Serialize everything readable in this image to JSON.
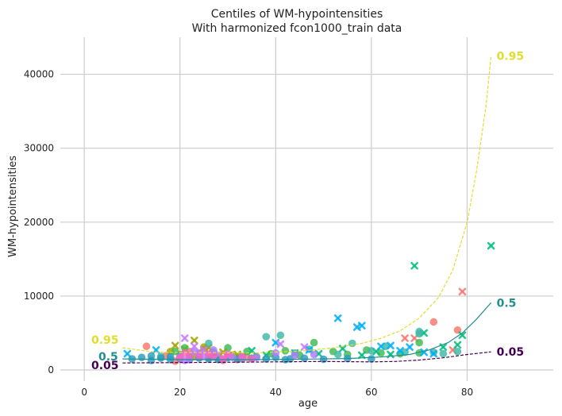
{
  "chart_data": {
    "type": "scatter",
    "title": "Centiles of WM-hypointensities",
    "subtitle": "With harmonized fcon1000_train data",
    "xlabel": "age",
    "ylabel": "WM-hypointensities",
    "xlim": [
      -5,
      98
    ],
    "ylim": [
      -1500,
      45000
    ],
    "xticks": [
      0,
      20,
      40,
      60,
      80
    ],
    "yticks": [
      0,
      10000,
      20000,
      30000,
      40000
    ],
    "grid": true,
    "centile_lines": [
      {
        "label": "0.95",
        "color": "#e1dd2e",
        "style": "dashed",
        "x": [
          8,
          15,
          25,
          35,
          45,
          52,
          58,
          62,
          66,
          70,
          74,
          77,
          80,
          82,
          84,
          85
        ],
        "y": [
          3000,
          2400,
          2350,
          2300,
          2550,
          3000,
          3600,
          4300,
          5300,
          7000,
          9800,
          13500,
          20000,
          27000,
          36000,
          42500
        ]
      },
      {
        "label": "0.5",
        "color": "#21908d",
        "style": "solid",
        "x": [
          8,
          15,
          25,
          35,
          45,
          55,
          62,
          68,
          72,
          76,
          79,
          82,
          85
        ],
        "y": [
          1500,
          1450,
          1400,
          1400,
          1450,
          1550,
          1750,
          2100,
          2700,
          3700,
          5000,
          6900,
          9100
        ]
      },
      {
        "label": "0.05",
        "color": "#440154",
        "style": "dashed",
        "x": [
          8,
          20,
          30,
          40,
          50,
          60,
          65,
          70,
          75,
          80,
          85
        ],
        "y": [
          950,
          1000,
          1050,
          1100,
          1150,
          1100,
          1150,
          1350,
          1650,
          2100,
          2450
        ]
      }
    ],
    "scatter_series": [
      {
        "color": "#f8766d",
        "marker": "circle",
        "points": [
          [
            13,
            3200
          ],
          [
            17,
            1900
          ],
          [
            20,
            1500
          ],
          [
            22,
            2500
          ],
          [
            24,
            2200
          ],
          [
            26,
            1600
          ],
          [
            28,
            2000
          ],
          [
            30,
            1800
          ],
          [
            32,
            1400
          ],
          [
            34,
            1700
          ],
          [
            73,
            6500
          ],
          [
            78,
            5400
          ],
          [
            19,
            1200
          ],
          [
            25,
            2800
          ],
          [
            29,
            1300
          ]
        ]
      },
      {
        "color": "#f8766d",
        "marker": "cross",
        "points": [
          [
            22,
            2100
          ],
          [
            26,
            2400
          ],
          [
            30,
            2000
          ],
          [
            67,
            4300
          ],
          [
            69,
            4300
          ],
          [
            77,
            2700
          ],
          [
            79,
            10600
          ]
        ]
      },
      {
        "color": "#a3a500",
        "marker": "circle",
        "points": [
          [
            18,
            2500
          ],
          [
            20,
            2100
          ],
          [
            23,
            1800
          ],
          [
            25,
            3100
          ],
          [
            28,
            1600
          ],
          [
            31,
            2000
          ]
        ]
      },
      {
        "color": "#a3a500",
        "marker": "cross",
        "points": [
          [
            19,
            3300
          ],
          [
            21,
            2800
          ],
          [
            23,
            4000
          ],
          [
            26,
            3000
          ],
          [
            29,
            2400
          ],
          [
            32,
            2100
          ]
        ]
      },
      {
        "color": "#3fb950",
        "marker": "circle",
        "points": [
          [
            19,
            2500
          ],
          [
            21,
            3000
          ],
          [
            24,
            1700
          ],
          [
            27,
            2400
          ],
          [
            30,
            3000
          ],
          [
            34,
            2500
          ],
          [
            36,
            1800
          ],
          [
            39,
            2200
          ],
          [
            42,
            2600
          ],
          [
            45,
            2000
          ],
          [
            48,
            3700
          ],
          [
            52,
            2500
          ],
          [
            55,
            2100
          ],
          [
            59,
            2700
          ],
          [
            62,
            2300
          ],
          [
            66,
            2200
          ],
          [
            70,
            3700
          ],
          [
            70,
            2300
          ]
        ]
      },
      {
        "color": "#00bf7d",
        "marker": "cross",
        "points": [
          [
            35,
            2600
          ],
          [
            38,
            2000
          ],
          [
            44,
            2300
          ],
          [
            49,
            2200
          ],
          [
            54,
            2900
          ],
          [
            58,
            2000
          ],
          [
            61,
            2500
          ],
          [
            64,
            2100
          ],
          [
            69,
            14100
          ],
          [
            78,
            3400
          ],
          [
            79,
            4700
          ],
          [
            85,
            16800
          ],
          [
            71,
            5000
          ],
          [
            75,
            3100
          ]
        ]
      },
      {
        "color": "#3db8a3",
        "marker": "circle",
        "points": [
          [
            16,
            1800
          ],
          [
            22,
            2000
          ],
          [
            26,
            3600
          ],
          [
            33,
            1500
          ],
          [
            38,
            4500
          ],
          [
            41,
            4700
          ],
          [
            44,
            2300
          ],
          [
            47,
            2800
          ],
          [
            53,
            2100
          ],
          [
            56,
            3600
          ],
          [
            60,
            2600
          ],
          [
            63,
            3200
          ],
          [
            67,
            2400
          ],
          [
            70,
            4900
          ],
          [
            70,
            5200
          ],
          [
            73,
            2400
          ],
          [
            78,
            2500
          ],
          [
            75,
            2200
          ]
        ]
      },
      {
        "color": "#00b0f6",
        "marker": "cross",
        "points": [
          [
            9,
            2200
          ],
          [
            15,
            2700
          ],
          [
            20,
            2000
          ],
          [
            24,
            1900
          ],
          [
            27,
            2200
          ],
          [
            40,
            3700
          ],
          [
            47,
            2700
          ],
          [
            53,
            7000
          ],
          [
            57,
            5800
          ],
          [
            58,
            6000
          ],
          [
            62,
            3200
          ],
          [
            64,
            3300
          ],
          [
            66,
            2600
          ],
          [
            68,
            3100
          ],
          [
            71,
            2400
          ],
          [
            73,
            2200
          ]
        ]
      },
      {
        "color": "#2a9bc0",
        "marker": "circle",
        "points": [
          [
            10,
            1500
          ],
          [
            12,
            1700
          ],
          [
            14,
            1300
          ],
          [
            16,
            1600
          ],
          [
            18,
            1400
          ],
          [
            20,
            1550
          ],
          [
            22,
            1450
          ],
          [
            24,
            1600
          ],
          [
            26,
            1500
          ],
          [
            28,
            1400
          ],
          [
            30,
            1650
          ],
          [
            32,
            1500
          ],
          [
            35,
            1600
          ],
          [
            38,
            1500
          ],
          [
            40,
            1700
          ],
          [
            43,
            1500
          ],
          [
            46,
            1600
          ],
          [
            50,
            1450
          ],
          [
            55,
            1550
          ],
          [
            60,
            1500
          ],
          [
            14,
            1900
          ],
          [
            18,
            1800
          ],
          [
            27,
            1750
          ],
          [
            33,
            1850
          ],
          [
            42,
            1400
          ]
        ]
      },
      {
        "color": "#b07dff",
        "marker": "circle",
        "points": [
          [
            21,
            1300
          ],
          [
            23,
            2500
          ],
          [
            24,
            2300
          ],
          [
            25,
            1900
          ],
          [
            27,
            2700
          ],
          [
            29,
            1400
          ],
          [
            31,
            1700
          ],
          [
            33,
            1600
          ],
          [
            36,
            1700
          ],
          [
            40,
            2300
          ],
          [
            44,
            2000
          ],
          [
            48,
            2100
          ],
          [
            20,
            1700
          ],
          [
            22,
            1400
          ]
        ]
      },
      {
        "color": "#c77cff",
        "marker": "cross",
        "points": [
          [
            21,
            4300
          ],
          [
            23,
            3200
          ],
          [
            25,
            2700
          ],
          [
            28,
            2100
          ],
          [
            30,
            1900
          ],
          [
            41,
            3500
          ],
          [
            46,
            3100
          ]
        ]
      },
      {
        "color": "#ff61c3",
        "marker": "circle",
        "points": [
          [
            20,
            1700
          ],
          [
            22,
            2000
          ],
          [
            24,
            1800
          ],
          [
            27,
            1900
          ],
          [
            30,
            2100
          ],
          [
            33,
            1800
          ],
          [
            21,
            2300
          ],
          [
            26,
            2100
          ],
          [
            29,
            1500
          ],
          [
            35,
            1500
          ]
        ]
      }
    ]
  }
}
